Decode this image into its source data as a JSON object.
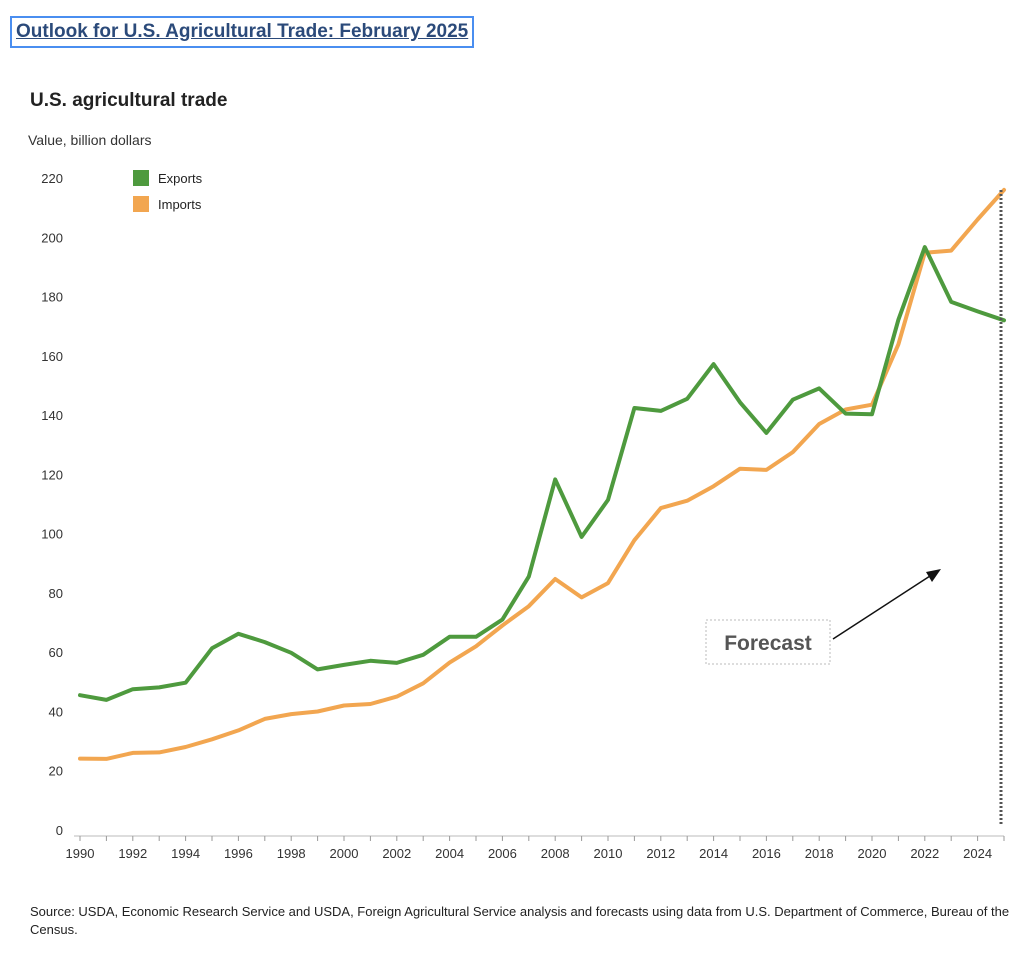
{
  "header": {
    "link_text": "Outlook for U.S. Agricultural Trade: February 2025"
  },
  "footer": {
    "source": "Source: USDA, Economic Research Service and USDA, Foreign Agricultural Service analysis and forecasts using data from U.S. Department of Commerce, Bureau of the Census."
  },
  "colors": {
    "exports": "#4e9a3e",
    "imports": "#f2a650",
    "link_border": "#4a8ef0"
  },
  "chart_data": {
    "type": "line",
    "title": "U.S. agricultural trade",
    "ylabel": "Value, billion dollars",
    "xlabel": "",
    "ylim": [
      0,
      220
    ],
    "xlim": [
      1990,
      2025
    ],
    "yticks": [
      0,
      20,
      40,
      60,
      80,
      100,
      120,
      140,
      160,
      180,
      200,
      220
    ],
    "xticks": [
      "1990",
      "1992",
      "1994",
      "1996",
      "1998",
      "2000",
      "2002",
      "2004",
      "2006",
      "2008",
      "2010",
      "2012",
      "2014",
      "2016",
      "2018",
      "2020",
      "2022",
      "2024"
    ],
    "grid": false,
    "legend_position": "top-left",
    "x": [
      1990,
      1991,
      1992,
      1993,
      1994,
      1995,
      1996,
      1997,
      1998,
      1999,
      2000,
      2001,
      2002,
      2003,
      2004,
      2005,
      2006,
      2007,
      2008,
      2009,
      2010,
      2011,
      2012,
      2013,
      2014,
      2015,
      2016,
      2017,
      2018,
      2019,
      2020,
      2021,
      2022,
      2023,
      2024,
      2025
    ],
    "series": [
      {
        "name": "Exports",
        "color": "#4e9a3e",
        "values": [
          45.5,
          43.9,
          47.5,
          48.1,
          49.7,
          61.3,
          66.2,
          63.4,
          59.8,
          54.2,
          55.7,
          57.1,
          56.4,
          59.1,
          65.2,
          65.2,
          71.0,
          85.5,
          118.3,
          98.9,
          111.4,
          142.4,
          141.4,
          145.5,
          157.2,
          144.3,
          134.0,
          145.2,
          149.0,
          140.5,
          140.3,
          172.2,
          196.7,
          178.2,
          175.0,
          172.0
        ]
      },
      {
        "name": "Imports",
        "color": "#f2a650",
        "values": [
          24.1,
          24.0,
          26.0,
          26.2,
          28.0,
          30.6,
          33.6,
          37.5,
          39.1,
          40.0,
          42.0,
          42.5,
          45.0,
          49.5,
          56.5,
          62.0,
          69.0,
          75.5,
          84.7,
          78.5,
          83.3,
          97.8,
          108.6,
          111.1,
          116.0,
          121.9,
          121.5,
          127.5,
          137.0,
          141.9,
          143.5,
          163.9,
          194.8,
          195.5,
          206.0,
          216.0
        ]
      }
    ],
    "annotation": {
      "text": "Forecast",
      "forecast_from": 2025
    }
  }
}
